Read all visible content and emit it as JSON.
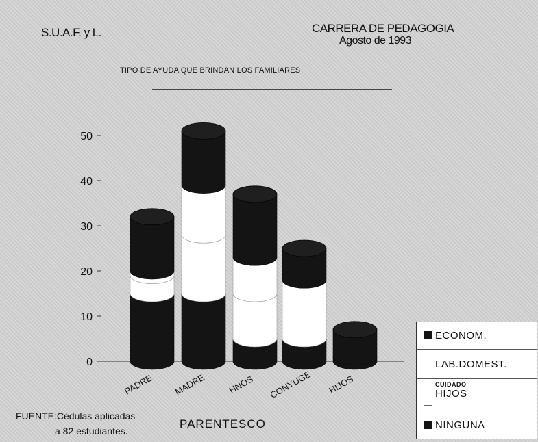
{
  "header": {
    "org": "S.U.A.F. y L.",
    "career": "CARRERA DE PEDAGOGIA",
    "date": "Agosto de 1993"
  },
  "footer": {
    "source_line1": "FUENTE:Cédulas aplicadas",
    "source_line2": "a 82 estudiantes."
  },
  "legend": {
    "items": [
      {
        "label": "ECONOM.",
        "label_small": ""
      },
      {
        "label": "LAB.DOMEST.",
        "label_small": ""
      },
      {
        "label": "HIJOS",
        "label_small": "CUIDADO"
      },
      {
        "label": "NINGUNA",
        "label_small": ""
      }
    ]
  },
  "colors": {
    "dark": "#141414",
    "light": "#ffffff",
    "axis": "#333333"
  },
  "chart_data": {
    "type": "bar",
    "style": "stacked 3D cylinders",
    "title": "TIPO DE AYUDA QUE BRINDAN LOS FAMILIARES",
    "xlabel": "PARENTESCO",
    "ylabel": "",
    "categories": [
      "PADRE",
      "MADRE",
      "HNOS",
      "CONYUGE",
      "HIJOS"
    ],
    "yticks": [
      0,
      10,
      20,
      30,
      40,
      50
    ],
    "ylim": [
      0,
      55
    ],
    "grid": false,
    "legend_position": "bottom-right",
    "series": [
      {
        "name": "ECONOM.",
        "color": "#141414",
        "values": [
          15,
          15,
          5,
          5,
          1
        ]
      },
      {
        "name": "LAB.DOMEST.",
        "color": "#ffffff",
        "values": [
          4,
          13,
          10,
          13,
          0
        ]
      },
      {
        "name": "CUIDADO HIJOS",
        "color": "#ffffff",
        "values": [
          1,
          11,
          8,
          0,
          0
        ]
      },
      {
        "name": "NINGUNA",
        "color": "#141414",
        "values": [
          12,
          12,
          14,
          7,
          6
        ]
      }
    ]
  }
}
